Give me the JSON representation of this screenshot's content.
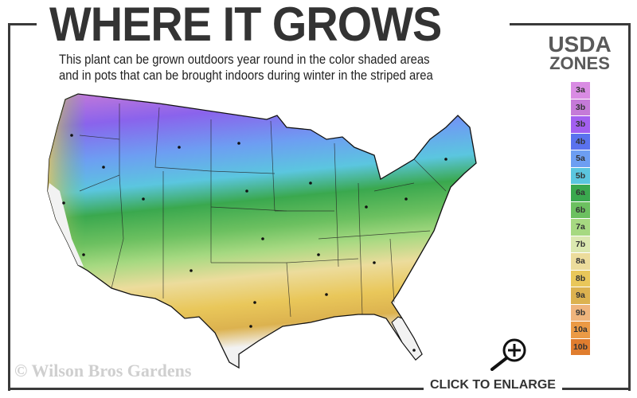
{
  "header": {
    "title": "WHERE IT GROWS",
    "subtitle_line1": "This plant can be grown outdoors year round in the color shaded areas",
    "subtitle_line2": "and in pots that can be brought indoors during winter in the striped area"
  },
  "legend": {
    "title_line1": "USDA",
    "title_line2": "ZONES",
    "zones": [
      {
        "label": "3a",
        "color": "#d98be3"
      },
      {
        "label": "3b",
        "color": "#c57ad8"
      },
      {
        "label": "3b",
        "color": "#a25ff0"
      },
      {
        "label": "4b",
        "color": "#5a72ee"
      },
      {
        "label": "5a",
        "color": "#6d9ef2"
      },
      {
        "label": "5b",
        "color": "#5bc6df"
      },
      {
        "label": "6a",
        "color": "#3aa84e"
      },
      {
        "label": "6b",
        "color": "#6cc060"
      },
      {
        "label": "7a",
        "color": "#a6d981"
      },
      {
        "label": "7b",
        "color": "#dbe8b0"
      },
      {
        "label": "8a",
        "color": "#ecdc9c"
      },
      {
        "label": "8b",
        "color": "#e9c75a"
      },
      {
        "label": "9a",
        "color": "#dcb24f"
      },
      {
        "label": "9b",
        "color": "#efb47c"
      },
      {
        "label": "10a",
        "color": "#eb9a45"
      },
      {
        "label": "10b",
        "color": "#e07d2e"
      }
    ]
  },
  "watermark": "© Wilson Bros Gardens",
  "enlarge_label": "CLICK TO ENLARGE",
  "icons": {
    "enlarge": "magnifier-plus-icon"
  }
}
